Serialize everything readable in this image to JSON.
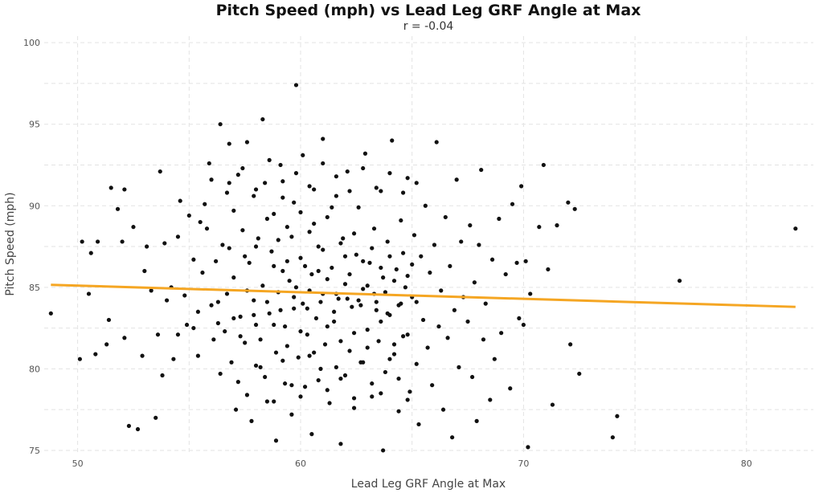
{
  "chart_data": {
    "type": "scatter",
    "title": "Pitch Speed (mph) vs Lead Leg GRF Angle at Max",
    "subtitle": "r =  -0.04",
    "xlabel": "Lead Leg GRF Angle at Max",
    "ylabel": "Pitch Speed (mph)",
    "xlim": [
      48.5,
      83.0
    ],
    "ylim": [
      74.8,
      100.4
    ],
    "xticks": [
      50,
      60,
      70,
      80
    ],
    "yticks": [
      75,
      80,
      85,
      90,
      95,
      100
    ],
    "grid": true,
    "trendline": {
      "color": "#F5A623",
      "x": [
        48.8,
        82.2
      ],
      "y": [
        85.15,
        83.8
      ]
    },
    "point_color": "#111111",
    "series": [
      {
        "points": [
          [
            48.8,
            83.4
          ],
          [
            50.1,
            80.6
          ],
          [
            50.2,
            87.8
          ],
          [
            50.5,
            84.6
          ],
          [
            50.6,
            87.1
          ],
          [
            50.8,
            80.9
          ],
          [
            50.9,
            87.8
          ],
          [
            51.3,
            81.5
          ],
          [
            51.4,
            83.0
          ],
          [
            51.5,
            91.1
          ],
          [
            51.8,
            89.8
          ],
          [
            52.0,
            87.8
          ],
          [
            52.1,
            81.9
          ],
          [
            52.1,
            91.0
          ],
          [
            52.3,
            76.5
          ],
          [
            52.5,
            88.7
          ],
          [
            52.7,
            76.3
          ],
          [
            52.9,
            80.8
          ],
          [
            53.0,
            86.0
          ],
          [
            53.1,
            87.5
          ],
          [
            53.3,
            84.8
          ],
          [
            53.5,
            77.0
          ],
          [
            53.6,
            82.1
          ],
          [
            53.7,
            92.1
          ],
          [
            53.8,
            79.6
          ],
          [
            53.9,
            87.7
          ],
          [
            54.0,
            84.2
          ],
          [
            54.2,
            85.0
          ],
          [
            54.3,
            80.6
          ],
          [
            54.5,
            88.1
          ],
          [
            54.5,
            82.1
          ],
          [
            54.6,
            90.3
          ],
          [
            54.8,
            84.5
          ],
          [
            54.9,
            82.7
          ],
          [
            55.0,
            89.4
          ],
          [
            55.2,
            82.5
          ],
          [
            55.2,
            86.7
          ],
          [
            55.4,
            83.5
          ],
          [
            55.4,
            80.8
          ],
          [
            55.6,
            85.9
          ],
          [
            55.8,
            88.6
          ],
          [
            55.9,
            92.6
          ],
          [
            56.0,
            91.6
          ],
          [
            56.1,
            81.8
          ],
          [
            56.2,
            86.6
          ],
          [
            56.3,
            84.1
          ],
          [
            56.4,
            95.0
          ],
          [
            56.4,
            79.7
          ],
          [
            56.6,
            82.3
          ],
          [
            56.7,
            90.8
          ],
          [
            56.8,
            93.8
          ],
          [
            56.8,
            87.4
          ],
          [
            56.9,
            80.4
          ],
          [
            57.0,
            85.6
          ],
          [
            57.1,
            77.5
          ],
          [
            57.2,
            91.9
          ],
          [
            57.3,
            83.2
          ],
          [
            57.4,
            88.5
          ],
          [
            57.5,
            81.6
          ],
          [
            57.6,
            93.9
          ],
          [
            57.7,
            86.5
          ],
          [
            57.8,
            76.8
          ],
          [
            57.9,
            84.2
          ],
          [
            57.9,
            90.6
          ],
          [
            58.0,
            82.7
          ],
          [
            58.1,
            88.0
          ],
          [
            58.2,
            80.1
          ],
          [
            58.3,
            95.3
          ],
          [
            58.3,
            85.1
          ],
          [
            58.4,
            91.4
          ],
          [
            58.5,
            78.0
          ],
          [
            58.6,
            83.4
          ],
          [
            58.7,
            87.2
          ],
          [
            58.8,
            89.5
          ],
          [
            58.9,
            81.0
          ],
          [
            58.9,
            75.6
          ],
          [
            59.0,
            84.7
          ],
          [
            59.1,
            92.5
          ],
          [
            59.2,
            86.0
          ],
          [
            59.3,
            79.1
          ],
          [
            59.3,
            82.6
          ],
          [
            59.4,
            88.7
          ],
          [
            59.5,
            85.4
          ],
          [
            59.6,
            77.2
          ],
          [
            59.7,
            90.2
          ],
          [
            59.7,
            83.7
          ],
          [
            59.8,
            97.4
          ],
          [
            59.9,
            80.7
          ],
          [
            60.0,
            86.8
          ],
          [
            60.1,
            84.0
          ],
          [
            60.1,
            93.1
          ],
          [
            60.2,
            78.9
          ],
          [
            60.3,
            82.1
          ],
          [
            60.4,
            88.4
          ],
          [
            60.5,
            85.8
          ],
          [
            60.5,
            76.0
          ],
          [
            60.6,
            91.0
          ],
          [
            60.7,
            83.1
          ],
          [
            60.8,
            87.5
          ],
          [
            60.9,
            80.0
          ],
          [
            61.0,
            94.1
          ],
          [
            61.0,
            84.6
          ],
          [
            61.1,
            81.5
          ],
          [
            61.2,
            89.3
          ],
          [
            61.3,
            77.9
          ],
          [
            61.4,
            86.2
          ],
          [
            61.5,
            82.9
          ],
          [
            61.6,
            90.6
          ],
          [
            61.7,
            84.3
          ],
          [
            61.8,
            79.4
          ],
          [
            61.8,
            75.4
          ],
          [
            61.9,
            88.0
          ],
          [
            62.0,
            85.2
          ],
          [
            62.1,
            92.1
          ],
          [
            62.2,
            81.1
          ],
          [
            62.3,
            83.8
          ],
          [
            62.4,
            77.6
          ],
          [
            62.5,
            87.0
          ],
          [
            62.6,
            89.9
          ],
          [
            62.7,
            80.4
          ],
          [
            62.8,
            84.9
          ],
          [
            62.9,
            93.2
          ],
          [
            63.0,
            82.4
          ],
          [
            63.1,
            86.5
          ],
          [
            63.2,
            78.3
          ],
          [
            63.3,
            88.6
          ],
          [
            63.4,
            84.1
          ],
          [
            63.5,
            81.7
          ],
          [
            63.6,
            90.9
          ],
          [
            63.7,
            75.0
          ],
          [
            63.7,
            85.6
          ],
          [
            63.8,
            79.8
          ],
          [
            63.9,
            87.8
          ],
          [
            64.0,
            83.3
          ],
          [
            64.1,
            94.0
          ],
          [
            64.2,
            80.9
          ],
          [
            64.3,
            86.1
          ],
          [
            64.4,
            77.4
          ],
          [
            64.5,
            89.1
          ],
          [
            64.6,
            82.0
          ],
          [
            64.7,
            85.0
          ],
          [
            64.8,
            91.7
          ],
          [
            64.9,
            78.6
          ],
          [
            65.0,
            84.4
          ],
          [
            65.1,
            88.2
          ],
          [
            65.2,
            80.3
          ],
          [
            65.3,
            76.6
          ],
          [
            65.4,
            86.9
          ],
          [
            65.5,
            83.0
          ],
          [
            65.6,
            90.0
          ],
          [
            65.7,
            81.3
          ],
          [
            65.8,
            85.9
          ],
          [
            65.9,
            79.0
          ],
          [
            66.0,
            87.6
          ],
          [
            66.1,
            93.9
          ],
          [
            66.2,
            82.6
          ],
          [
            66.3,
            84.8
          ],
          [
            66.4,
            77.5
          ],
          [
            66.5,
            89.3
          ],
          [
            66.6,
            81.9
          ],
          [
            66.7,
            86.3
          ],
          [
            66.8,
            75.8
          ],
          [
            66.9,
            83.6
          ],
          [
            67.0,
            91.6
          ],
          [
            67.1,
            80.1
          ],
          [
            67.2,
            87.8
          ],
          [
            67.3,
            84.4
          ],
          [
            67.5,
            82.9
          ],
          [
            67.6,
            88.8
          ],
          [
            67.7,
            79.5
          ],
          [
            67.8,
            85.3
          ],
          [
            67.9,
            76.8
          ],
          [
            68.0,
            87.6
          ],
          [
            68.1,
            92.2
          ],
          [
            68.2,
            81.8
          ],
          [
            68.3,
            84.0
          ],
          [
            68.5,
            78.1
          ],
          [
            68.6,
            86.7
          ],
          [
            68.7,
            80.6
          ],
          [
            68.9,
            89.2
          ],
          [
            69.0,
            82.2
          ],
          [
            69.2,
            85.8
          ],
          [
            69.4,
            78.8
          ],
          [
            69.5,
            90.1
          ],
          [
            69.7,
            86.5
          ],
          [
            69.8,
            83.1
          ],
          [
            69.9,
            91.2
          ],
          [
            70.0,
            82.7
          ],
          [
            70.1,
            86.6
          ],
          [
            70.2,
            75.2
          ],
          [
            70.3,
            84.6
          ],
          [
            70.7,
            88.7
          ],
          [
            70.9,
            92.5
          ],
          [
            71.1,
            86.1
          ],
          [
            71.3,
            77.8
          ],
          [
            71.5,
            88.8
          ],
          [
            72.0,
            90.2
          ],
          [
            72.1,
            81.5
          ],
          [
            72.3,
            89.8
          ],
          [
            72.5,
            79.7
          ],
          [
            74.0,
            75.8
          ],
          [
            74.2,
            77.1
          ],
          [
            77.0,
            85.4
          ],
          [
            82.2,
            88.6
          ],
          [
            55.5,
            89.0
          ],
          [
            55.7,
            90.1
          ],
          [
            56.5,
            87.6
          ],
          [
            57.0,
            89.7
          ],
          [
            57.5,
            86.9
          ],
          [
            58.0,
            87.5
          ],
          [
            58.5,
            89.2
          ],
          [
            58.8,
            86.3
          ],
          [
            59.0,
            87.9
          ],
          [
            59.2,
            90.5
          ],
          [
            59.4,
            86.6
          ],
          [
            59.6,
            88.1
          ],
          [
            59.8,
            85.0
          ],
          [
            60.0,
            89.6
          ],
          [
            60.2,
            86.3
          ],
          [
            60.4,
            84.8
          ],
          [
            60.6,
            88.9
          ],
          [
            60.8,
            86.0
          ],
          [
            61.0,
            87.3
          ],
          [
            61.2,
            85.5
          ],
          [
            61.4,
            89.9
          ],
          [
            61.6,
            84.6
          ],
          [
            61.8,
            87.7
          ],
          [
            62.0,
            86.9
          ],
          [
            62.2,
            85.8
          ],
          [
            62.4,
            88.3
          ],
          [
            62.6,
            84.2
          ],
          [
            62.8,
            86.6
          ],
          [
            63.0,
            85.1
          ],
          [
            63.2,
            87.4
          ],
          [
            63.4,
            83.6
          ],
          [
            63.6,
            86.2
          ],
          [
            63.8,
            84.7
          ],
          [
            64.0,
            86.9
          ],
          [
            64.2,
            85.4
          ],
          [
            64.4,
            83.9
          ],
          [
            64.6,
            87.1
          ],
          [
            64.8,
            85.7
          ],
          [
            65.0,
            86.4
          ],
          [
            65.2,
            84.1
          ],
          [
            56.0,
            83.9
          ],
          [
            56.3,
            82.8
          ],
          [
            56.7,
            84.6
          ],
          [
            57.0,
            83.1
          ],
          [
            57.3,
            82.0
          ],
          [
            57.6,
            84.8
          ],
          [
            57.9,
            83.3
          ],
          [
            58.2,
            81.8
          ],
          [
            58.5,
            84.1
          ],
          [
            58.8,
            82.7
          ],
          [
            59.1,
            83.6
          ],
          [
            59.4,
            81.4
          ],
          [
            59.7,
            84.4
          ],
          [
            60.0,
            82.3
          ],
          [
            60.3,
            83.7
          ],
          [
            60.6,
            81.0
          ],
          [
            60.9,
            84.1
          ],
          [
            61.2,
            82.6
          ],
          [
            61.5,
            83.5
          ],
          [
            61.8,
            81.7
          ],
          [
            62.1,
            84.3
          ],
          [
            62.4,
            82.2
          ],
          [
            62.7,
            83.9
          ],
          [
            63.0,
            81.3
          ],
          [
            63.3,
            84.6
          ],
          [
            63.6,
            82.9
          ],
          [
            63.9,
            83.4
          ],
          [
            64.2,
            81.5
          ],
          [
            64.5,
            84.0
          ],
          [
            64.8,
            82.1
          ],
          [
            57.2,
            79.2
          ],
          [
            57.6,
            78.4
          ],
          [
            58.0,
            80.2
          ],
          [
            58.4,
            79.5
          ],
          [
            58.8,
            78.0
          ],
          [
            59.2,
            80.5
          ],
          [
            59.6,
            79.0
          ],
          [
            60.0,
            78.3
          ],
          [
            60.4,
            80.8
          ],
          [
            60.8,
            79.3
          ],
          [
            61.2,
            78.7
          ],
          [
            61.6,
            80.1
          ],
          [
            62.0,
            79.6
          ],
          [
            62.4,
            78.2
          ],
          [
            62.8,
            80.4
          ],
          [
            63.2,
            79.1
          ],
          [
            63.6,
            78.5
          ],
          [
            64.0,
            80.6
          ],
          [
            64.4,
            79.4
          ],
          [
            64.8,
            78.1
          ],
          [
            56.8,
            91.4
          ],
          [
            57.4,
            92.3
          ],
          [
            58.0,
            91.0
          ],
          [
            58.6,
            92.8
          ],
          [
            59.2,
            91.5
          ],
          [
            59.8,
            92.0
          ],
          [
            60.4,
            91.2
          ],
          [
            61.0,
            92.6
          ],
          [
            61.6,
            91.8
          ],
          [
            62.2,
            90.9
          ],
          [
            62.8,
            92.3
          ],
          [
            63.4,
            91.1
          ],
          [
            64.0,
            92.0
          ],
          [
            64.6,
            90.8
          ],
          [
            65.2,
            91.4
          ]
        ]
      }
    ]
  }
}
